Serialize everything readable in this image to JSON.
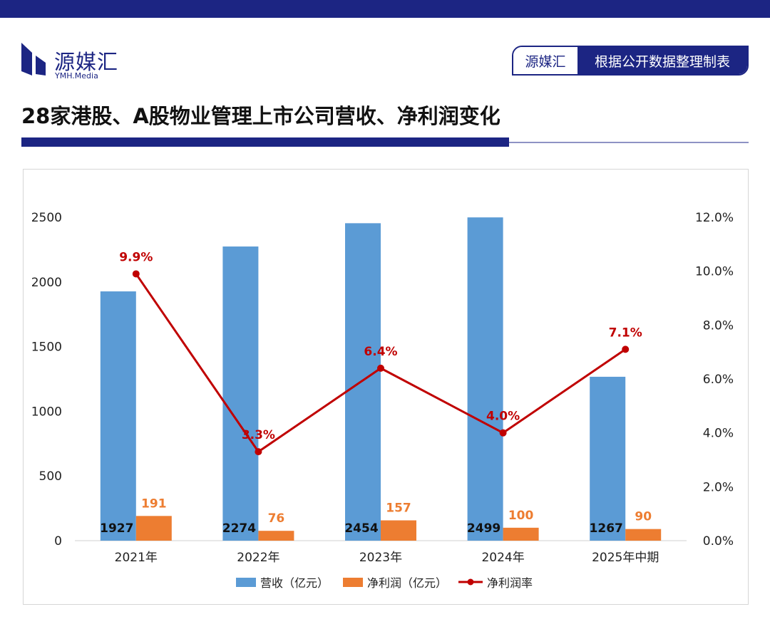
{
  "header": {
    "brand_name": "源媒汇",
    "brand_sub": "YMH.Media",
    "source_brand": "源媒汇",
    "source_text": "根据公开数据整理制表"
  },
  "title": "28家港股、A股物业管理上市公司营收、净利润变化",
  "colors": {
    "navy": "#1c2583",
    "revenue": "#5b9bd5",
    "profit": "#ed7d31",
    "margin": "#c00000"
  },
  "chart_data": {
    "type": "bar",
    "categories": [
      "2021年",
      "2022年",
      "2023年",
      "2024年",
      "2025年中期"
    ],
    "series": [
      {
        "name": "营收（亿元）",
        "type": "bar",
        "axis": "left",
        "values": [
          1927,
          2274,
          2454,
          2499,
          1267
        ],
        "labels": [
          "1927",
          "2274",
          "2454",
          "2499",
          "1267"
        ]
      },
      {
        "name": "净利润（亿元）",
        "type": "bar",
        "axis": "left",
        "values": [
          191,
          76,
          157,
          100,
          90
        ],
        "labels": [
          "191",
          "76",
          "157",
          "100",
          "90"
        ]
      },
      {
        "name": "净利润率",
        "type": "line",
        "axis": "right",
        "values": [
          9.9,
          3.3,
          6.4,
          4.0,
          7.1
        ],
        "labels": [
          "9.9%",
          "3.3%",
          "6.4%",
          "4.0%",
          "7.1%"
        ]
      }
    ],
    "y_left": {
      "min": 0,
      "max": 2500,
      "ticks": [
        0,
        500,
        1000,
        1500,
        2000,
        2500
      ]
    },
    "y_right": {
      "min": 0,
      "max": 12,
      "ticks": [
        "0.0%",
        "2.0%",
        "4.0%",
        "6.0%",
        "8.0%",
        "10.0%",
        "12.0%"
      ]
    },
    "legend_position": "bottom"
  }
}
